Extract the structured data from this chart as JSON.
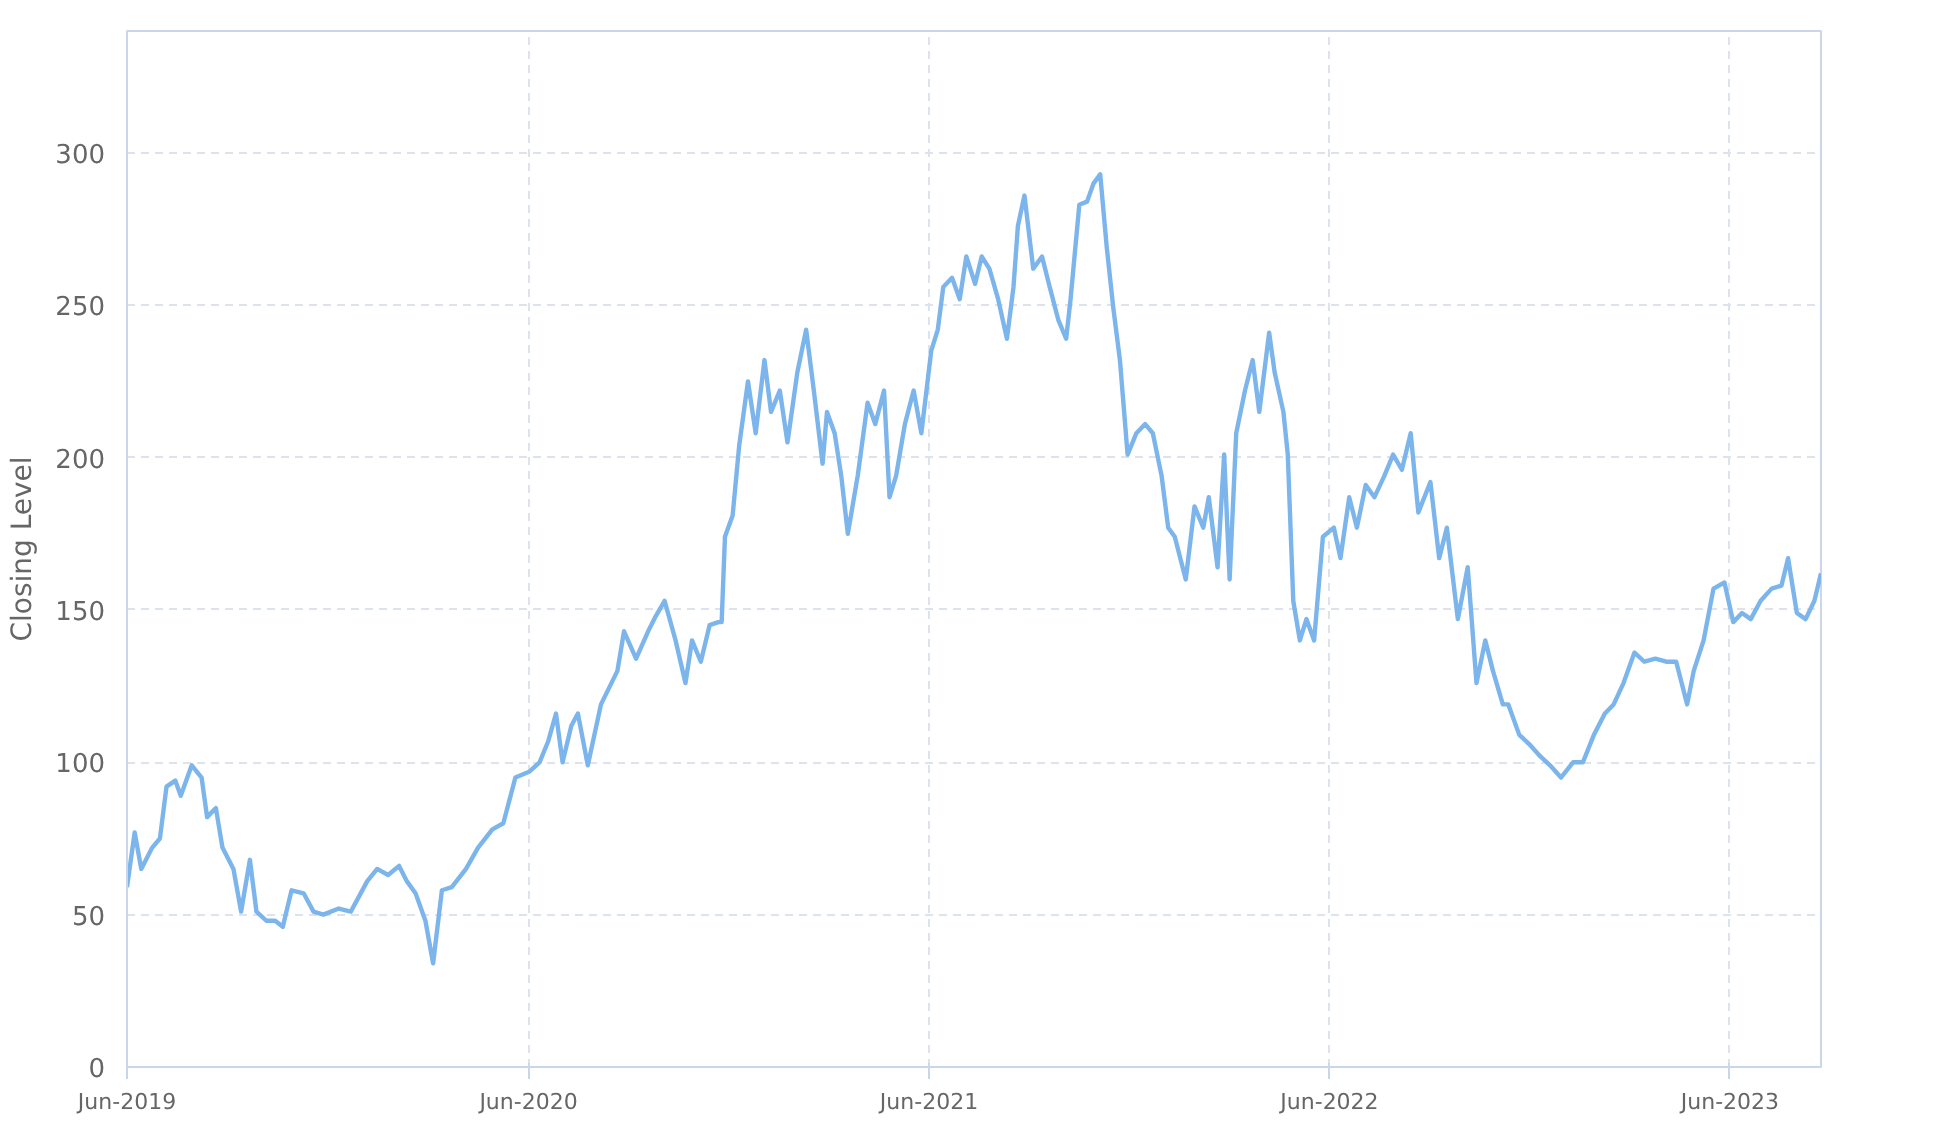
{
  "chart_data": {
    "type": "line",
    "ylabel": "Closing Level",
    "color": "#7cb5ec",
    "grid": true,
    "xlim": [
      "2019-06-01",
      "2023-08-23"
    ],
    "ylim": [
      0,
      340
    ],
    "xticks": [
      {
        "value": "2019-06-01",
        "label": "Jun-2019"
      },
      {
        "value": "2020-06-01",
        "label": "Jun-2020"
      },
      {
        "value": "2021-06-01",
        "label": "Jun-2021"
      },
      {
        "value": "2022-06-01",
        "label": "Jun-2022"
      },
      {
        "value": "2023-06-01",
        "label": "Jun-2023"
      }
    ],
    "yticks": [
      0,
      50,
      100,
      150,
      200,
      250,
      300
    ],
    "x": [
      "2019-06-01",
      "2019-06-08",
      "2019-06-14",
      "2019-06-24",
      "2019-07-01",
      "2019-07-07",
      "2019-07-15",
      "2019-07-20",
      "2019-07-30",
      "2019-08-08",
      "2019-08-13",
      "2019-08-21",
      "2019-08-27",
      "2019-09-06",
      "2019-09-13",
      "2019-09-21",
      "2019-09-27",
      "2019-10-06",
      "2019-10-14",
      "2019-10-21",
      "2019-10-29",
      "2019-11-09",
      "2019-11-18",
      "2019-11-27",
      "2019-12-11",
      "2019-12-22",
      "2020-01-06",
      "2020-01-15",
      "2020-01-25",
      "2020-02-04",
      "2020-02-11",
      "2020-02-19",
      "2020-02-28",
      "2020-03-06",
      "2020-03-14",
      "2020-03-23",
      "2020-04-05",
      "2020-04-16",
      "2020-04-29",
      "2020-05-09",
      "2020-05-20",
      "2020-06-02",
      "2020-06-11",
      "2020-06-19",
      "2020-06-26",
      "2020-07-02",
      "2020-07-10",
      "2020-07-16",
      "2020-07-25",
      "2020-08-06",
      "2020-08-21",
      "2020-08-27",
      "2020-09-07",
      "2020-09-18",
      "2020-09-25",
      "2020-10-03",
      "2020-10-13",
      "2020-10-22",
      "2020-10-28",
      "2020-11-05",
      "2020-11-13",
      "2020-11-21",
      "2020-11-24",
      "2020-11-27",
      "2020-12-04",
      "2020-12-10",
      "2020-12-18",
      "2020-12-25",
      "2021-01-02",
      "2021-01-08",
      "2021-01-16",
      "2021-01-23",
      "2021-02-01",
      "2021-02-09",
      "2021-02-16",
      "2021-02-24",
      "2021-02-28",
      "2021-03-07",
      "2021-03-13",
      "2021-03-19",
      "2021-03-28",
      "2021-04-06",
      "2021-04-13",
      "2021-04-21",
      "2021-04-26",
      "2021-05-02",
      "2021-05-10",
      "2021-05-18",
      "2021-05-25",
      "2021-06-03",
      "2021-06-09",
      "2021-06-14",
      "2021-06-22",
      "2021-06-29",
      "2021-07-05",
      "2021-07-13",
      "2021-07-19",
      "2021-07-26",
      "2021-08-03",
      "2021-08-11",
      "2021-08-17",
      "2021-08-21",
      "2021-08-27",
      "2021-09-04",
      "2021-09-12",
      "2021-09-19",
      "2021-09-27",
      "2021-10-04",
      "2021-10-08",
      "2021-10-16",
      "2021-10-23",
      "2021-10-29",
      "2021-11-04",
      "2021-11-10",
      "2021-11-16",
      "2021-11-22",
      "2021-11-29",
      "2021-12-07",
      "2021-12-15",
      "2021-12-22",
      "2021-12-30",
      "2022-01-05",
      "2022-01-11",
      "2022-01-21",
      "2022-01-29",
      "2022-02-06",
      "2022-02-11",
      "2022-02-19",
      "2022-02-25",
      "2022-03-02",
      "2022-03-08",
      "2022-03-16",
      "2022-03-23",
      "2022-03-29",
      "2022-04-07",
      "2022-04-12",
      "2022-04-20",
      "2022-04-24",
      "2022-04-29",
      "2022-05-05",
      "2022-05-11",
      "2022-05-18",
      "2022-05-26",
      "2022-06-05",
      "2022-06-11",
      "2022-06-19",
      "2022-06-26",
      "2022-07-04",
      "2022-07-12",
      "2022-07-21",
      "2022-07-29",
      "2022-08-06",
      "2022-08-14",
      "2022-08-21",
      "2022-09-01",
      "2022-09-09",
      "2022-09-16",
      "2022-09-26",
      "2022-10-05",
      "2022-10-13",
      "2022-10-21",
      "2022-10-28",
      "2022-11-06",
      "2022-11-11",
      "2022-11-21",
      "2022-11-30",
      "2022-12-10",
      "2022-12-19",
      "2022-12-29",
      "2023-01-09",
      "2023-01-18",
      "2023-01-28",
      "2023-02-07",
      "2023-02-15",
      "2023-02-24",
      "2023-03-06",
      "2023-03-15",
      "2023-03-25",
      "2023-04-04",
      "2023-04-13",
      "2023-04-23",
      "2023-04-29",
      "2023-05-08",
      "2023-05-17",
      "2023-05-27",
      "2023-06-04",
      "2023-06-12",
      "2023-06-20",
      "2023-06-29",
      "2023-07-09",
      "2023-07-18",
      "2023-07-24",
      "2023-08-01",
      "2023-08-09",
      "2023-08-17",
      "2023-08-23"
    ],
    "values": [
      59,
      77,
      65,
      72,
      75,
      92,
      94,
      89,
      99,
      95,
      82,
      85,
      72,
      65,
      51,
      68,
      51,
      48,
      48,
      46,
      58,
      57,
      51,
      50,
      52,
      51,
      61,
      65,
      63,
      66,
      61,
      57,
      48,
      34,
      58,
      59,
      65,
      72,
      78,
      80,
      95,
      97,
      100,
      107,
      116,
      100,
      112,
      116,
      99,
      119,
      130,
      143,
      134,
      143,
      148,
      153,
      140,
      126,
      140,
      133,
      145,
      146,
      146,
      174,
      181,
      204,
      225,
      208,
      232,
      215,
      222,
      205,
      228,
      242,
      222,
      198,
      215,
      208,
      194,
      175,
      194,
      218,
      211,
      222,
      187,
      194,
      211,
      222,
      208,
      235,
      242,
      256,
      259,
      252,
      266,
      257,
      266,
      262,
      252,
      239,
      256,
      276,
      286,
      262,
      266,
      256,
      245,
      239,
      252,
      283,
      284,
      290,
      293,
      269,
      249,
      232,
      201,
      208,
      211,
      208,
      194,
      177,
      174,
      160,
      184,
      177,
      187,
      164,
      201,
      160,
      208,
      222,
      232,
      215,
      241,
      228,
      215,
      201,
      153,
      140,
      147,
      140,
      174,
      177,
      167,
      187,
      177,
      191,
      187,
      194,
      201,
      196,
      208,
      182,
      192,
      167,
      177,
      147,
      164,
      126,
      140,
      130,
      119,
      119,
      109,
      106,
      102,
      99,
      95,
      100,
      100,
      109,
      116,
      119,
      126,
      136,
      133,
      134,
      133,
      133,
      119,
      130,
      140,
      157,
      159,
      146,
      149,
      147,
      153,
      157,
      158,
      167,
      149,
      147,
      153,
      162
    ]
  }
}
